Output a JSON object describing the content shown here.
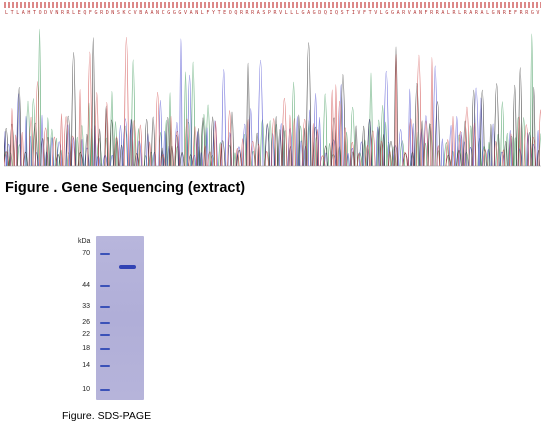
{
  "sequencing": {
    "caption": "Figure . Gene Sequencing (extract)",
    "colors": {
      "A": "#3f9a5a",
      "C": "#4a4ad0",
      "G": "#2b2b2b",
      "T": "#d04a4a"
    },
    "letters": "LTLAHTODVNRRLEQFGRDNSKCVBAANCGGGVANLFYTEOQRRRASPRVLLLGAGDQIQSTIVFTVLGGARVANFRRALRLRARALGNREFRRGV"
  },
  "gel": {
    "caption": "Figure. SDS-PAGE",
    "unit_label": "kDa",
    "markers": [
      {
        "kda": "70"
      },
      {
        "kda": "44"
      },
      {
        "kda": "33"
      },
      {
        "kda": "26"
      },
      {
        "kda": "22"
      },
      {
        "kda": "18"
      },
      {
        "kda": "14"
      },
      {
        "kda": "10"
      }
    ],
    "sample_band_kda": 58
  }
}
